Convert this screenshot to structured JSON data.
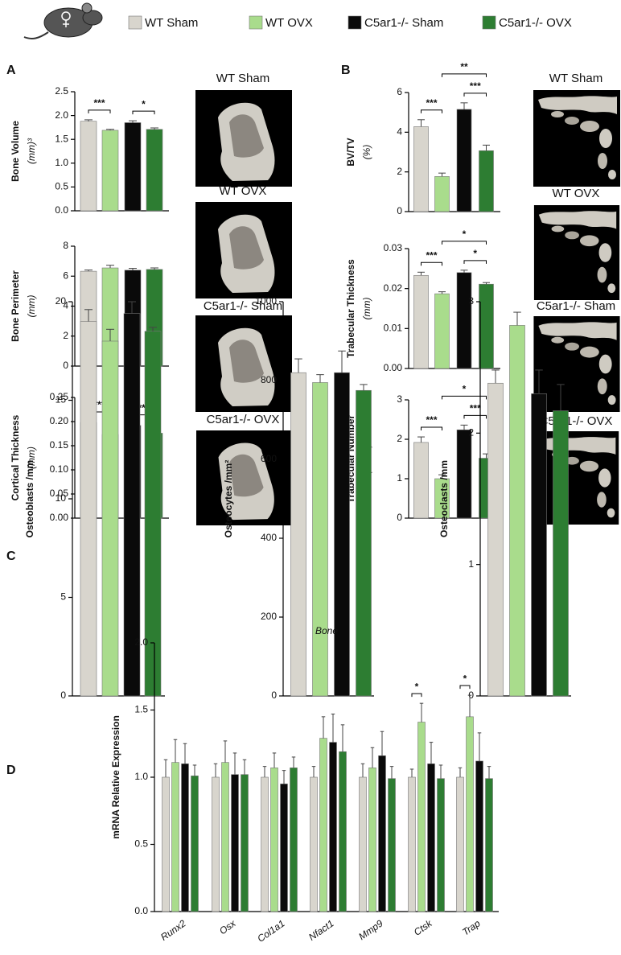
{
  "panels": [
    "A",
    "B",
    "C",
    "D"
  ],
  "legend": [
    {
      "name": "WT Sham",
      "color": "#d8d5cd"
    },
    {
      "name": "WT OVX",
      "color": "#a9dc8c"
    },
    {
      "name": "C5ar1-/- Sham",
      "color": "#0a0a0a"
    },
    {
      "name": "C5ar1-/- OVX",
      "color": "#2d7d32"
    }
  ],
  "images": {
    "a": [
      "WT Sham",
      "WT OVX",
      "C5ar1-/- Sham",
      "C5ar1-/- OVX"
    ],
    "b": [
      "WT Sham",
      "WT OVX",
      "C5ar1-/- Sham",
      "C5ar1-/- OVX"
    ]
  },
  "chart_data": [
    {
      "type": "bar",
      "ylabel": "Bone Volume",
      "yunit": "(mm)³",
      "values": [
        1.88,
        1.69,
        1.85,
        1.71
      ],
      "errors": [
        0.03,
        0.02,
        0.04,
        0.03
      ],
      "ylim": [
        0,
        2.5
      ],
      "yticks": [
        {
          "value": 0,
          "label": "0.0"
        },
        {
          "value": 0.5,
          "label": "0.5"
        },
        {
          "value": 1,
          "label": "1.0"
        },
        {
          "value": 1.5,
          "label": "1.5"
        },
        {
          "value": 2,
          "label": "2.0"
        },
        {
          "value": 2.5,
          "label": "2.5"
        }
      ],
      "annotations": [
        {
          "text": "***",
          "between": [
            "WT Sham",
            "WT OVX"
          ]
        },
        {
          "text": "*",
          "between": [
            "C5ar1-/- Sham",
            "C5ar1-/- OVX"
          ]
        }
      ]
    },
    {
      "type": "bar",
      "ylabel": "Bone Perimeter",
      "yunit": "(mm)",
      "values": [
        6.33,
        6.55,
        6.4,
        6.45
      ],
      "errors": [
        0.08,
        0.18,
        0.12,
        0.1
      ],
      "ylim": [
        0,
        8
      ],
      "yticks": [
        0,
        2,
        4,
        6,
        8
      ],
      "annotations": []
    },
    {
      "type": "bar",
      "ylabel": "Cortical Thickness",
      "yunit": "(mm)",
      "values": [
        0.198,
        0.173,
        0.192,
        0.176
      ],
      "errors": [
        0.002,
        0.003,
        0.002,
        0.003
      ],
      "ylim": [
        0,
        0.25
      ],
      "yticks": [
        {
          "value": 0,
          "label": "0.00"
        },
        {
          "value": 0.05,
          "label": "0.05"
        },
        {
          "value": 0.1,
          "label": "0.10"
        },
        {
          "value": 0.15,
          "label": "0.15"
        },
        {
          "value": 0.2,
          "label": "0.20"
        },
        {
          "value": 0.25,
          "label": "0.25"
        }
      ],
      "annotations": [
        {
          "text": "***",
          "between": [
            "WT Sham",
            "WT OVX"
          ]
        },
        {
          "text": "***",
          "between": [
            "C5ar1-/- Sham",
            "C5ar1-/- OVX"
          ]
        }
      ]
    },
    {
      "type": "bar",
      "ylabel": "BV/TV",
      "yunit": "(%)",
      "values": [
        4.28,
        1.77,
        5.15,
        3.07
      ],
      "errors": [
        0.35,
        0.17,
        0.33,
        0.28
      ],
      "ylim": [
        0,
        6
      ],
      "yticks": [
        0,
        2,
        4,
        6
      ],
      "annotations": [
        {
          "text": "***",
          "between": [
            "WT Sham",
            "WT OVX"
          ]
        },
        {
          "text": "***",
          "between": [
            "C5ar1-/- Sham",
            "C5ar1-/- OVX"
          ]
        },
        {
          "text": "**",
          "between": [
            "WT OVX",
            "C5ar1-/- OVX"
          ]
        }
      ]
    },
    {
      "type": "bar",
      "ylabel": "Trabecular Thickness",
      "yunit": "(mm)",
      "values": [
        0.0233,
        0.0187,
        0.024,
        0.0211
      ],
      "errors": [
        0.0008,
        0.0005,
        0.0006,
        0.0004
      ],
      "ylim": [
        0,
        0.03
      ],
      "yticks": [
        {
          "value": 0,
          "label": "0.00"
        },
        {
          "value": 0.01,
          "label": "0.01"
        },
        {
          "value": 0.02,
          "label": "0.02"
        },
        {
          "value": 0.03,
          "label": "0.03"
        }
      ],
      "annotations": [
        {
          "text": "***",
          "between": [
            "WT Sham",
            "WT OVX"
          ]
        },
        {
          "text": "*",
          "between": [
            "C5ar1-/- Sham",
            "C5ar1-/- OVX"
          ]
        },
        {
          "text": "*",
          "between": [
            "WT OVX",
            "C5ar1-/- OVX"
          ]
        }
      ]
    },
    {
      "type": "bar",
      "ylabel": "Trabecular Number",
      "yunit": "(1/mm)",
      "values": [
        1.92,
        1.0,
        2.24,
        1.52
      ],
      "errors": [
        0.14,
        0.1,
        0.12,
        0.11
      ],
      "ylim": [
        0,
        3
      ],
      "yticks": [
        0,
        1,
        2,
        3
      ],
      "annotations": [
        {
          "text": "***",
          "between": [
            "WT Sham",
            "WT OVX"
          ]
        },
        {
          "text": "***",
          "between": [
            "C5ar1-/- Sham",
            "C5ar1-/- OVX"
          ]
        },
        {
          "text": "*",
          "between": [
            "WT OVX",
            "C5ar1-/- OVX"
          ]
        }
      ]
    },
    {
      "type": "bar",
      "ylabel": "Osteoblasts /mm",
      "values": [
        19.0,
        18.0,
        19.4,
        18.5
      ],
      "errors": [
        0.6,
        0.6,
        0.6,
        0.2
      ],
      "ylim": [
        0,
        20
      ],
      "yticks": [
        0,
        5,
        10,
        15,
        20
      ],
      "annotations": []
    },
    {
      "type": "bar",
      "ylabel": "Osteocytes /mm²",
      "values": [
        820,
        795,
        820,
        775
      ],
      "errors": [
        35,
        20,
        55,
        15
      ],
      "ylim": [
        0,
        1000
      ],
      "yticks": [
        0,
        200,
        400,
        600,
        800,
        1000
      ],
      "annotations": []
    },
    {
      "type": "bar",
      "ylabel": "Osteoclasts /mm",
      "values": [
        2.38,
        2.82,
        2.3,
        2.17
      ],
      "errors": [
        0.1,
        0.1,
        0.18,
        0.2
      ],
      "ylim": [
        0,
        3
      ],
      "yticks": [
        0,
        1,
        2,
        3
      ],
      "annotations": []
    },
    {
      "type": "grouped_bar",
      "title": "Bone",
      "ylabel": "mRNA Relative Expression",
      "categories": [
        "Runx2",
        "Osx",
        "Col1a1",
        "Nfact1",
        "Mmp9",
        "Ctsk",
        "Trap"
      ],
      "series": [
        {
          "values": [
            1,
            1,
            1,
            1,
            1,
            1,
            1
          ],
          "errors": [
            0.13,
            0.1,
            0.08,
            0.08,
            0.1,
            0.06,
            0.07
          ]
        },
        {
          "values": [
            1.11,
            1.11,
            1.07,
            1.29,
            1.07,
            1.41,
            1.45
          ],
          "errors": [
            0.17,
            0.16,
            0.11,
            0.16,
            0.15,
            0.14,
            0.16
          ]
        },
        {
          "values": [
            1.1,
            1.02,
            0.95,
            1.26,
            1.16,
            1.1,
            1.12
          ],
          "errors": [
            0.15,
            0.16,
            0.1,
            0.21,
            0.18,
            0.16,
            0.21
          ]
        },
        {
          "values": [
            1.01,
            1.02,
            1.07,
            1.19,
            0.99,
            0.99,
            0.99
          ],
          "errors": [
            0.08,
            0.11,
            0.08,
            0.2,
            0.09,
            0.1,
            0.09
          ]
        }
      ],
      "ylim": [
        0,
        2
      ],
      "yticks": [
        {
          "value": 0,
          "label": "0.0"
        },
        {
          "value": 0.5,
          "label": "0.5"
        },
        {
          "value": 1,
          "label": "1.0"
        },
        {
          "value": 1.5,
          "label": "1.5"
        },
        {
          "value": 2,
          "label": "2.0"
        }
      ],
      "annotations": [
        {
          "text": "*",
          "category": "Ctsk",
          "between": [
            "WT Sham",
            "WT OVX"
          ]
        },
        {
          "text": "*",
          "category": "Trap",
          "between": [
            "WT Sham",
            "WT OVX"
          ]
        }
      ]
    }
  ]
}
